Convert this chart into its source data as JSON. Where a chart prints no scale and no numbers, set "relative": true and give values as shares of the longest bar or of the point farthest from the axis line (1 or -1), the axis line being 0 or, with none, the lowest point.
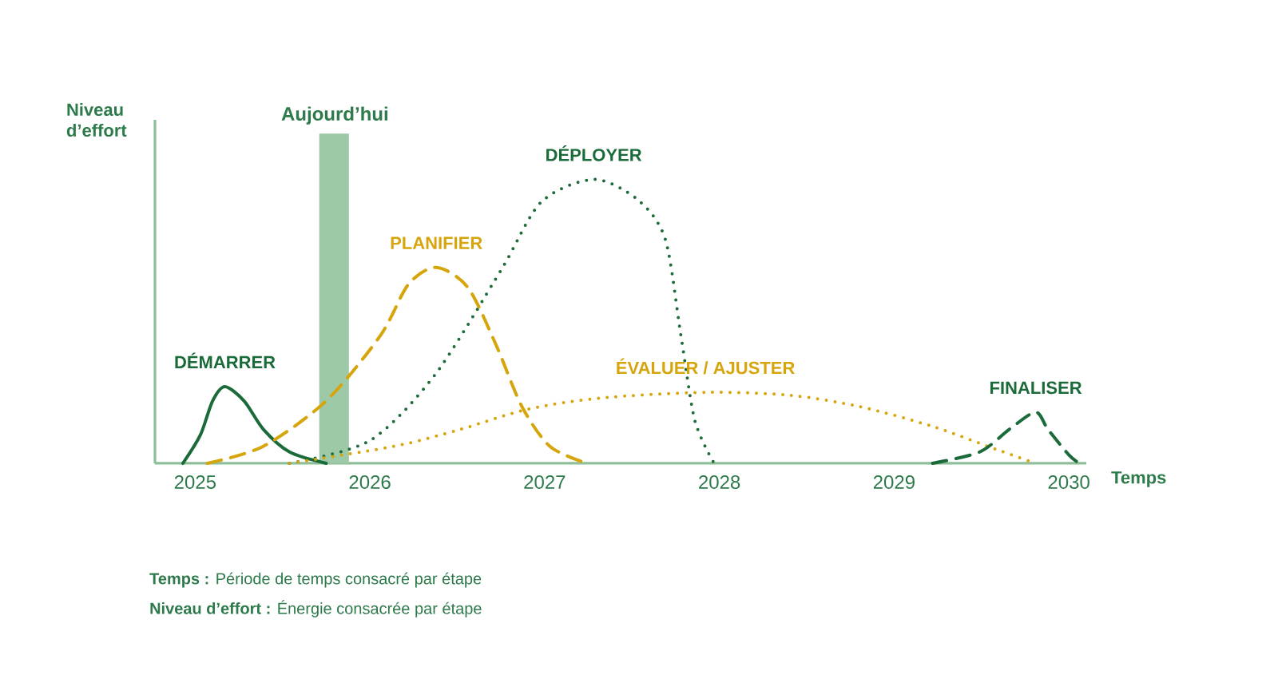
{
  "chart_data": {
    "type": "line",
    "relative": true,
    "xlabel": "Temps",
    "ylabel": "Niveau d’effort",
    "xlim": [
      2024.77,
      2030.1
    ],
    "xticks": [
      2025,
      2026,
      2027,
      2028,
      2029,
      2030
    ],
    "bands": [
      {
        "axis": "x",
        "from": 2025.71,
        "to": 2025.88,
        "label": "Aujourd’hui",
        "color": "#9dc9a8"
      }
    ],
    "series": [
      {
        "name": "DÉMARRER",
        "color": "#1b6b3a",
        "line_style": "solid",
        "x": [
          2024.93,
          2025.03,
          2025.1,
          2025.17,
          2025.28,
          2025.39,
          2025.54,
          2025.75
        ],
        "values": [
          0,
          0.1,
          0.22,
          0.27,
          0.22,
          0.12,
          0.04,
          0
        ]
      },
      {
        "name": "PLANIFIER",
        "color": "#d6a50c",
        "line_style": "dashed",
        "x": [
          2025.07,
          2025.39,
          2025.75,
          2026.06,
          2026.22,
          2026.38,
          2026.56,
          2026.72,
          2026.87,
          2027.03,
          2027.24
        ],
        "values": [
          0,
          0.06,
          0.22,
          0.45,
          0.63,
          0.69,
          0.62,
          0.42,
          0.2,
          0.06,
          0
        ]
      },
      {
        "name": "DÉPLOYER",
        "color": "#1b6b3a",
        "line_style": "dotted",
        "x": [
          2025.54,
          2026,
          2026.37,
          2026.75,
          2026.98,
          2027.28,
          2027.53,
          2027.69,
          2027.78,
          2027.86,
          2027.97
        ],
        "values": [
          0,
          0.08,
          0.31,
          0.68,
          0.92,
          1,
          0.93,
          0.79,
          0.45,
          0.15,
          0
        ]
      },
      {
        "name": "ÉVALUER / AJUSTER",
        "color": "#d6a50c",
        "line_style": "dotted",
        "x": [
          2025.54,
          2026.14,
          2026.52,
          2026.9,
          2027.32,
          2027.92,
          2028.4,
          2028.8,
          2029.22,
          2029.58,
          2029.81
        ],
        "values": [
          0,
          0.06,
          0.12,
          0.19,
          0.23,
          0.25,
          0.24,
          0.2,
          0.13,
          0.05,
          0
        ]
      },
      {
        "name": "FINALISER",
        "color": "#1b6b3a",
        "line_style": "dashed",
        "x": [
          2029.22,
          2029.49,
          2029.66,
          2029.81,
          2029.88,
          2030,
          2030.06
        ],
        "values": [
          0,
          0.04,
          0.12,
          0.18,
          0.12,
          0.03,
          0
        ]
      }
    ],
    "annotations": [
      "**Temps :** Période de temps consacré par étape",
      "**Niveau d’effort :** Énergie consacrée par étape"
    ]
  }
}
